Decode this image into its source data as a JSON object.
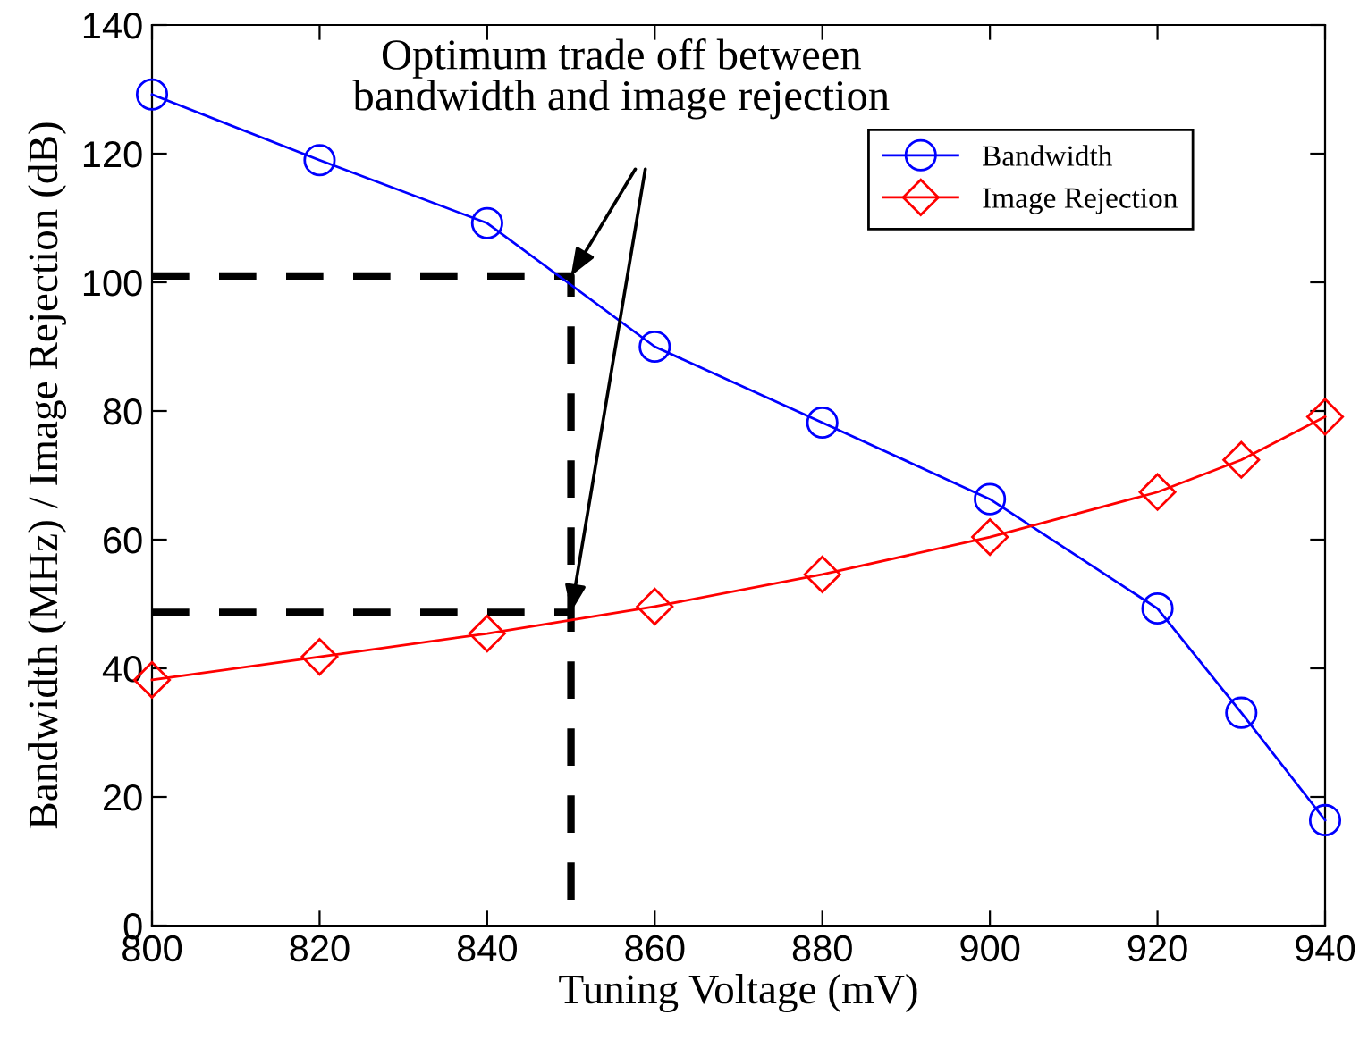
{
  "chart_data": {
    "type": "line",
    "xlabel": "Tuning Voltage (mV)",
    "ylabel": "Bandwidth (MHz) / Image Rejection (dB)",
    "xlim": [
      800,
      940
    ],
    "xticks": [
      800,
      820,
      840,
      860,
      880,
      900,
      920,
      940
    ],
    "ylim": [
      0,
      140
    ],
    "yticks": [
      0,
      20,
      40,
      60,
      80,
      100,
      120,
      140
    ],
    "grid": false,
    "legend": "top right",
    "annotations": [
      {
        "text": "Optimum trade off between\nbandwidth and image rejection",
        "x": 850,
        "y": 101
      }
    ],
    "series": [
      {
        "name": "Bandwidth",
        "color": "#0000ff",
        "marker": "circle",
        "x": [
          800,
          820,
          840,
          860,
          880,
          900,
          920,
          930,
          940
        ],
        "values": [
          129.2,
          119,
          109.2,
          90,
          78.2,
          66.3,
          49.3,
          33.1,
          16.4
        ]
      },
      {
        "name": "Image Rejection",
        "color": "#ff0000",
        "marker": "diamond",
        "x": [
          800,
          820,
          840,
          860,
          880,
          900,
          920,
          930,
          940
        ],
        "values": [
          38.2,
          41.8,
          45.4,
          49.6,
          54.6,
          60.4,
          67.4,
          72.4,
          79.1
        ]
      },
      {
        "color": "#000000",
        "marker": "none",
        "line_style": "dashed",
        "x": [
          800,
          850,
          850
        ],
        "values": [
          101,
          101,
          0
        ]
      },
      {
        "color": "#000000",
        "marker": "none",
        "line_style": "dashed",
        "x": [
          800,
          850
        ],
        "values": [
          48.7,
          48.7
        ]
      }
    ]
  }
}
